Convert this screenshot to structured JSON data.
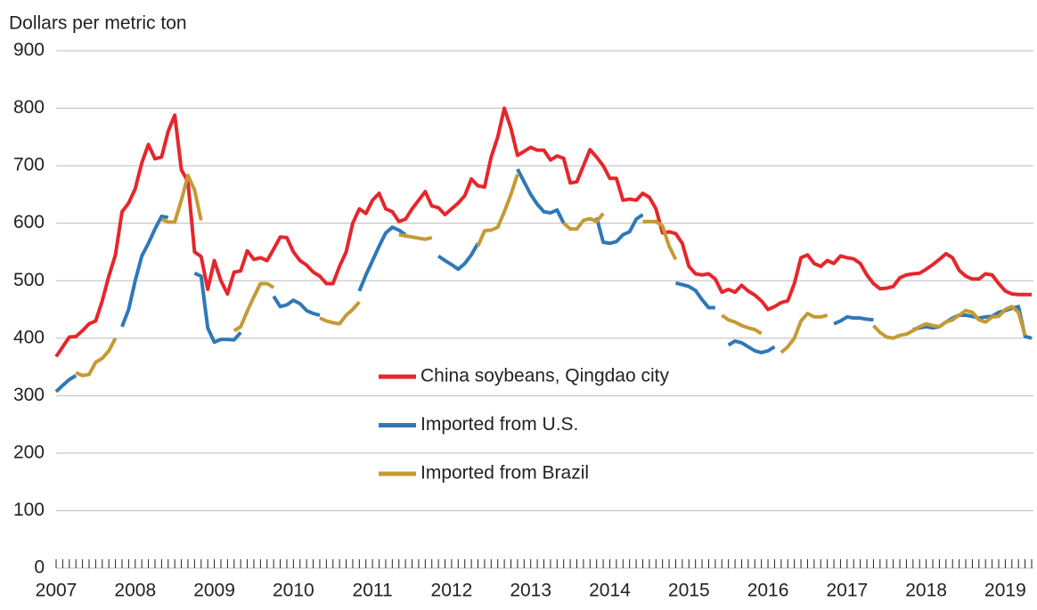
{
  "chart_data": {
    "type": "line",
    "y_axis_label": "Dollars per metric ton",
    "categories": [
      "2007",
      null,
      null,
      null,
      null,
      null,
      null,
      null,
      null,
      null,
      null,
      null,
      "2008",
      null,
      null,
      null,
      null,
      null,
      null,
      null,
      null,
      null,
      null,
      null,
      "2009",
      null,
      null,
      null,
      null,
      null,
      null,
      null,
      null,
      null,
      null,
      null,
      "2010",
      null,
      null,
      null,
      null,
      null,
      null,
      null,
      null,
      null,
      null,
      null,
      "2011",
      null,
      null,
      null,
      null,
      null,
      null,
      null,
      null,
      null,
      null,
      null,
      "2012",
      null,
      null,
      null,
      null,
      null,
      null,
      null,
      null,
      null,
      null,
      null,
      "2013",
      null,
      null,
      null,
      null,
      null,
      null,
      null,
      null,
      null,
      null,
      null,
      "2014",
      null,
      null,
      null,
      null,
      null,
      null,
      null,
      null,
      null,
      null,
      null,
      "2015",
      null,
      null,
      null,
      null,
      null,
      null,
      null,
      null,
      null,
      null,
      null,
      "2016",
      null,
      null,
      null,
      null,
      null,
      null,
      null,
      null,
      null,
      null,
      null,
      "2017",
      null,
      null,
      null,
      null,
      null,
      null,
      null,
      null,
      null,
      null,
      null,
      "2018",
      null,
      null,
      null,
      null,
      null,
      null,
      null,
      null,
      null,
      null,
      null,
      "2019",
      null,
      null,
      null,
      null
    ],
    "series": [
      {
        "name": "China soybeans, Qingdao city",
        "color": "#e6262c",
        "values": [
          368,
          385,
          402,
          403,
          413,
          425,
          430,
          465,
          508,
          545,
          620,
          635,
          660,
          705,
          737,
          712,
          715,
          760,
          788,
          693,
          672,
          550,
          542,
          485,
          535,
          500,
          477,
          515,
          517,
          552,
          537,
          540,
          535,
          555,
          576,
          575,
          550,
          535,
          527,
          515,
          508,
          495,
          495,
          525,
          550,
          600,
          625,
          617,
          640,
          652,
          625,
          620,
          603,
          607,
          625,
          640,
          655,
          630,
          627,
          615,
          625,
          635,
          648,
          677,
          665,
          663,
          715,
          750,
          800,
          765,
          718,
          725,
          732,
          727,
          727,
          710,
          717,
          713,
          670,
          672,
          700,
          728,
          715,
          700,
          678,
          678,
          640,
          642,
          640,
          652,
          645,
          625,
          583,
          585,
          582,
          565,
          525,
          512,
          510,
          512,
          503,
          480,
          485,
          480,
          492,
          482,
          475,
          465,
          450,
          455,
          462,
          465,
          495,
          540,
          545,
          530,
          525,
          535,
          530,
          543,
          540,
          538,
          530,
          510,
          495,
          486,
          487,
          490,
          505,
          510,
          512,
          513,
          520,
          528,
          537,
          547,
          540,
          518,
          508,
          503,
          503,
          512,
          510,
          495,
          482,
          477,
          476,
          476,
          476
        ]
      },
      {
        "name": "Imported from U.S.",
        "color": "#2f78b8",
        "values": [
          307,
          318,
          328,
          335,
          null,
          null,
          null,
          null,
          null,
          null,
          420,
          450,
          500,
          543,
          565,
          590,
          612,
          610,
          null,
          null,
          null,
          513,
          508,
          418,
          393,
          398,
          398,
          397,
          410,
          null,
          null,
          null,
          null,
          473,
          455,
          458,
          466,
          460,
          448,
          443,
          440,
          null,
          null,
          null,
          null,
          null,
          482,
          510,
          535,
          560,
          583,
          593,
          588,
          580,
          null,
          null,
          null,
          null,
          543,
          535,
          528,
          520,
          530,
          545,
          565,
          null,
          null,
          null,
          null,
          null,
          694,
          672,
          650,
          633,
          620,
          618,
          623,
          600,
          null,
          null,
          null,
          null,
          610,
          567,
          565,
          568,
          580,
          585,
          607,
          615,
          null,
          null,
          null,
          null,
          496,
          493,
          490,
          483,
          467,
          453,
          453,
          null,
          388,
          395,
          392,
          385,
          378,
          375,
          378,
          385,
          null,
          null,
          null,
          null,
          null,
          null,
          null,
          null,
          425,
          430,
          437,
          435,
          435,
          433,
          432,
          null,
          null,
          null,
          null,
          null,
          415,
          418,
          420,
          418,
          420,
          428,
          435,
          440,
          440,
          438,
          435,
          437,
          438,
          445,
          448,
          452,
          455,
          403,
          400
        ]
      },
      {
        "name": "Imported from Brazil",
        "color": "#c59a35",
        "values": [
          null,
          null,
          null,
          340,
          335,
          337,
          358,
          365,
          378,
          400,
          null,
          null,
          null,
          null,
          null,
          null,
          607,
          602,
          602,
          640,
          683,
          658,
          605,
          null,
          null,
          null,
          null,
          413,
          420,
          447,
          472,
          495,
          495,
          488,
          null,
          null,
          null,
          null,
          null,
          null,
          435,
          430,
          427,
          425,
          440,
          450,
          463,
          null,
          null,
          null,
          null,
          null,
          580,
          578,
          576,
          574,
          572,
          575,
          null,
          null,
          null,
          null,
          null,
          null,
          560,
          587,
          588,
          593,
          620,
          650,
          685,
          null,
          null,
          null,
          null,
          null,
          null,
          600,
          590,
          590,
          605,
          608,
          603,
          617,
          null,
          null,
          null,
          null,
          null,
          603,
          603,
          603,
          595,
          560,
          537,
          null,
          null,
          null,
          null,
          null,
          null,
          440,
          432,
          428,
          422,
          418,
          415,
          408,
          null,
          null,
          375,
          385,
          400,
          430,
          443,
          437,
          437,
          440,
          null,
          null,
          null,
          null,
          null,
          null,
          422,
          410,
          402,
          400,
          405,
          407,
          413,
          420,
          425,
          422,
          420,
          428,
          432,
          440,
          448,
          445,
          432,
          428,
          437,
          438,
          450,
          455,
          445,
          405,
          null
        ]
      }
    ],
    "ylim": [
      0,
      900
    ],
    "yticks": [
      0,
      100,
      200,
      300,
      400,
      500,
      600,
      700,
      800,
      900
    ],
    "grid": true,
    "legend": "center"
  }
}
